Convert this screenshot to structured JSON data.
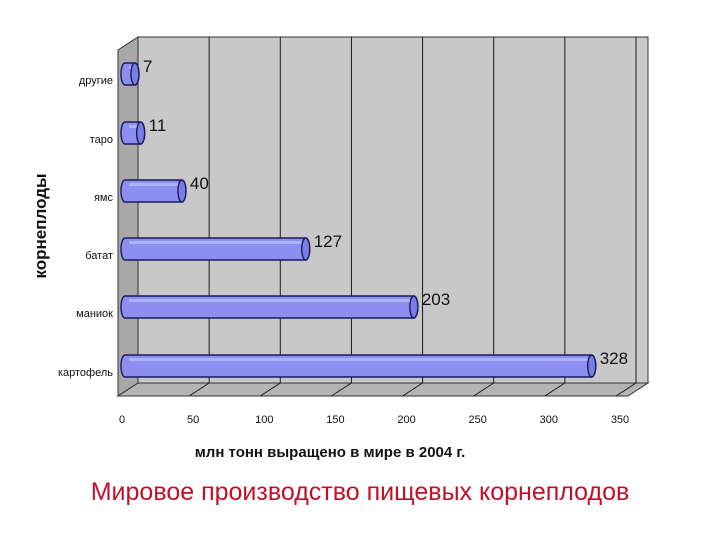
{
  "chart_data": {
    "type": "bar",
    "orientation": "horizontal",
    "style": "3d-cylinder",
    "categories": [
      "картофель",
      "маниок",
      "батат",
      "ямс",
      "таро",
      "другие"
    ],
    "values": [
      328,
      203,
      127,
      40,
      11,
      7
    ],
    "data_labels": [
      "328",
      "203",
      "127",
      "40",
      "11",
      "7"
    ],
    "xlabel": "млн тонн выращено в мире в 2004 г.",
    "ylabel": "корнеплоды",
    "xlim": [
      0,
      350
    ],
    "xticks": [
      "0",
      "50",
      "100",
      "150",
      "200",
      "250",
      "300",
      "350"
    ],
    "grid": true,
    "legend": "none",
    "colors": {
      "bar": "#8c8ff0",
      "bar_edge": "#1a1a60",
      "plot_bg": "#c8c8c8",
      "wall_side": "#a8a8a8",
      "grid": "#1a1a1a"
    }
  },
  "caption": "Мировое производство пищевых корнеплодов",
  "colors": {
    "caption": "#c0102a"
  }
}
